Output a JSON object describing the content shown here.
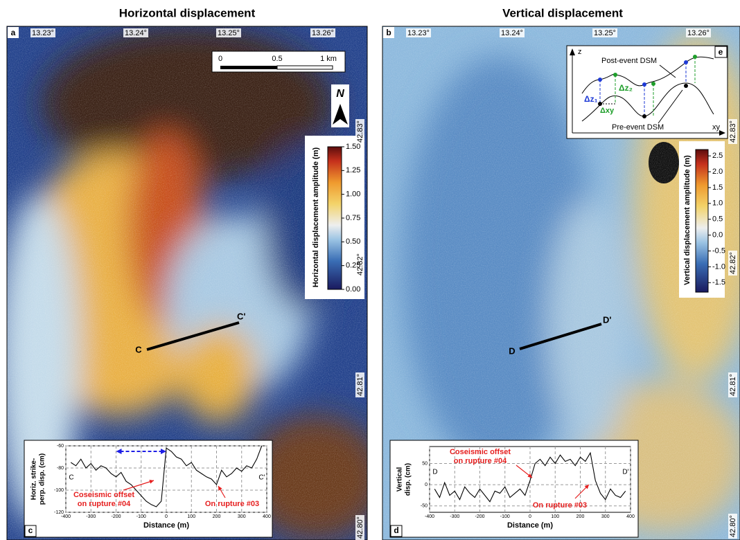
{
  "panels": [
    {
      "label": "a",
      "title": "Horizontal displacement",
      "lon_ticks": [
        "13.23°",
        "13.24°",
        "13.25°",
        "13.26°"
      ],
      "lat_ticks": [
        "42.83°",
        "42.82°",
        "42.81°",
        "42.80°"
      ],
      "scale_bar": [
        "0",
        "0.5",
        "1 km"
      ],
      "north": "N",
      "colorbar": {
        "label": "Horizontal displacement amplitude (m)",
        "clim": [
          0,
          1.5
        ],
        "ticks": [
          {
            "value": 1.5,
            "label": "1.50"
          },
          {
            "value": 1.25,
            "label": "1.25"
          },
          {
            "value": 1,
            "label": "1.00"
          },
          {
            "value": 0.75,
            "label": "0.75"
          },
          {
            "value": 0.5,
            "label": "0.50"
          },
          {
            "value": 0.25,
            "label": "0.25"
          },
          {
            "value": 0,
            "label": "0.00"
          }
        ]
      },
      "profile": [
        "C",
        "C'"
      ]
    },
    {
      "label": "b",
      "title": "Vertical displacement",
      "lon_ticks": [
        "13.23°",
        "13.24°",
        "13.25°",
        "13.26°"
      ],
      "lat_ticks": [
        "42.83°",
        "42.82°",
        "42.81°",
        "42.80°"
      ],
      "colorbar": {
        "label": "Vertical displacement amplitude (m)",
        "clim": [
          -1.8,
          2.7
        ],
        "ticks": [
          2.5,
          {
            "value": 2,
            "label": "2.0"
          },
          1.5,
          {
            "value": 1,
            "label": "1.0"
          },
          0.5,
          {
            "value": 0,
            "label": "0.0"
          },
          -0.5,
          {
            "value": -1,
            "label": "-1.0"
          },
          -1.5
        ]
      },
      "profile": [
        "D",
        "D'"
      ],
      "inset": {
        "label": "e",
        "z_axis": "z",
        "xy_axis": "xy",
        "post": "Post-event DSM",
        "pre": "Pre-event DSM",
        "dz1": "Δz₁",
        "dz2": "Δz₂",
        "dxy": "Δxy"
      }
    }
  ],
  "chart_data": [
    {
      "type": "line",
      "panel_label": "c",
      "xlabel": "Distance (m)",
      "ylabel": [
        "Horiz. strike-",
        "perp. disp. (cm)"
      ],
      "xlim": [
        -400,
        400
      ],
      "xticks": [
        -400,
        -300,
        -200,
        -100,
        0,
        100,
        200,
        300,
        400
      ],
      "ylim": [
        -120,
        -60
      ],
      "yticks": [
        -120,
        -100,
        -80,
        -60
      ],
      "grid": true,
      "x": [
        -380,
        -360,
        -340,
        -320,
        -300,
        -280,
        -260,
        -240,
        -220,
        -200,
        -180,
        -160,
        -140,
        -120,
        -100,
        -80,
        -60,
        -40,
        -20,
        0,
        20,
        40,
        60,
        80,
        100,
        120,
        140,
        160,
        180,
        200,
        220,
        240,
        260,
        280,
        300,
        320,
        340,
        360,
        380
      ],
      "series": [
        {
          "color": "#000000",
          "values": [
            -75,
            -78,
            -72,
            -80,
            -76,
            -82,
            -78,
            -80,
            -85,
            -88,
            -84,
            -92,
            -95,
            -100,
            -105,
            -110,
            -113,
            -115,
            -110,
            -62,
            -65,
            -70,
            -72,
            -78,
            -75,
            -82,
            -85,
            -88,
            -90,
            -95,
            -82,
            -88,
            -85,
            -80,
            -83,
            -78,
            -80,
            -72,
            -60
          ]
        }
      ],
      "span_arrow": {
        "x": [
          -200,
          0
        ],
        "y": -65,
        "color": "#1e1ee6"
      },
      "ends": [
        "C",
        "C'"
      ],
      "annotations": [
        [
          "Coseismic offset",
          "on rupture #04"
        ],
        [
          "On rupture #03"
        ]
      ]
    },
    {
      "type": "line",
      "panel_label": "d",
      "xlabel": "Distance (m)",
      "ylabel": [
        "Vertical",
        "disp. (cm)"
      ],
      "xlim": [
        -400,
        400
      ],
      "xticks": [
        -400,
        -300,
        -200,
        -100,
        0,
        100,
        200,
        300,
        400
      ],
      "ylim": [
        -65,
        90
      ],
      "yticks": [
        -50,
        0,
        50
      ],
      "grid": true,
      "x": [
        -380,
        -360,
        -340,
        -320,
        -300,
        -280,
        -260,
        -240,
        -220,
        -200,
        -180,
        -160,
        -140,
        -120,
        -100,
        -80,
        -60,
        -40,
        -20,
        0,
        20,
        40,
        60,
        80,
        100,
        120,
        140,
        160,
        180,
        200,
        220,
        240,
        260,
        280,
        300,
        320,
        340,
        360,
        380
      ],
      "series": [
        {
          "color": "#000000",
          "values": [
            -10,
            -30,
            5,
            -25,
            -15,
            -35,
            -5,
            -20,
            -30,
            -10,
            -25,
            -40,
            -15,
            -20,
            -5,
            -30,
            -20,
            -10,
            -25,
            10,
            50,
            60,
            45,
            65,
            50,
            70,
            55,
            60,
            45,
            65,
            55,
            75,
            10,
            -20,
            -35,
            -10,
            -25,
            -30,
            -15
          ]
        }
      ],
      "ends": [
        "D",
        "D'"
      ],
      "annotations": [
        [
          "Coseismic offset",
          "on rupture #04"
        ],
        [
          "On rupture #03"
        ]
      ]
    }
  ]
}
